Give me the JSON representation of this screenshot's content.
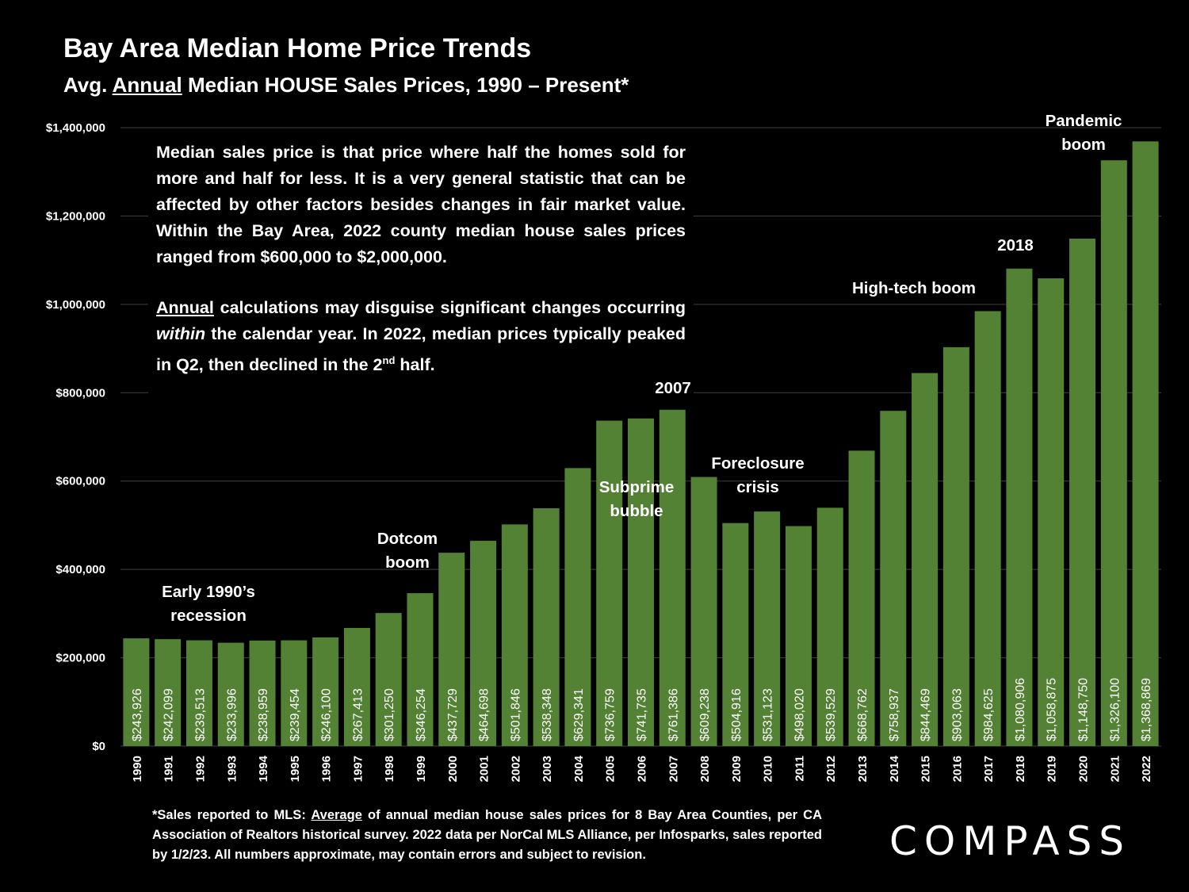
{
  "chart_data": {
    "type": "bar",
    "title": "Bay Area Median Home Price Trends",
    "subtitle_parts": [
      "Avg. ",
      "Annual",
      " Median HOUSE Sales Prices, 1990 – Present*"
    ],
    "categories": [
      "1990",
      "1991",
      "1992",
      "1993",
      "1994",
      "1995",
      "1996",
      "1997",
      "1998",
      "1999",
      "2000",
      "2001",
      "2002",
      "2003",
      "2004",
      "2005",
      "2006",
      "2007",
      "2008",
      "2009",
      "2010",
      "2011",
      "2012",
      "2013",
      "2014",
      "2015",
      "2016",
      "2017",
      "2018",
      "2019",
      "2020",
      "2021",
      "2022"
    ],
    "values": [
      243926,
      242099,
      239513,
      233996,
      238959,
      239454,
      246100,
      267413,
      301250,
      346254,
      437729,
      464698,
      501846,
      538348,
      629341,
      736759,
      741735,
      761386,
      609238,
      504916,
      531123,
      498020,
      539529,
      668762,
      758937,
      844469,
      903063,
      984625,
      1080906,
      1058875,
      1148750,
      1326100,
      1368869
    ],
    "value_labels": [
      "$243,926",
      "$242,099",
      "$239,513",
      "$233,996",
      "$238,959",
      "$239,454",
      "$246,100",
      "$267,413",
      "$301,250",
      "$346,254",
      "$437,729",
      "$464,698",
      "$501,846",
      "$538,348",
      "$629,341",
      "$736,759",
      "$741,735",
      "$761,386",
      "$609,238",
      "$504,916",
      "$531,123",
      "$498,020",
      "$539,529",
      "$668,762",
      "$758,937",
      "$844,469",
      "$903,063",
      "$984,625",
      "$1,080,906",
      "$1,058,875",
      "$1,148,750",
      "$1,326,100",
      "$1,368,869"
    ],
    "color": "#548235",
    "ylim": [
      0,
      1400000
    ],
    "yticks": [
      {
        "value": 0,
        "label": "$0"
      },
      {
        "value": 200000,
        "label": "$200,000"
      },
      {
        "value": 400000,
        "label": "$400,000"
      },
      {
        "value": 600000,
        "label": "$600,000"
      },
      {
        "value": 800000,
        "label": "$800,000"
      },
      {
        "value": 1000000,
        "label": "$1,000,000"
      },
      {
        "value": 1200000,
        "label": "$1,200,000"
      },
      {
        "value": 1400000,
        "label": "$1,400,000"
      }
    ],
    "grid": true,
    "annotations": [
      "Early 1990’s\nrecession",
      "Dotcom\nboom",
      "Subprime\nbubble",
      "2007",
      "Foreclosure\ncrisis",
      "High-tech boom",
      "2018",
      "Pandemic\nboom"
    ],
    "note_1": "Median sales price is that price where half the homes sold for more and half for less. It is a very general statistic that can be affected by other factors besides changes in fair market value. Within the Bay Area, 2022 county median house sales prices ranged from $600,000 to $2,000,000.",
    "note_2_parts": [
      "Annual",
      " calculations may disguise significant changes occurring ",
      "within",
      " the calendar year. In 2022, median prices typically peaked in Q2, then declined in the 2",
      "nd",
      " half."
    ],
    "footnote_parts": [
      "*Sales reported to MLS: ",
      "Average",
      " of annual median house sales prices for 8 Bay Area Counties, per CA Association of Realtors historical survey. 2022 data per NorCal MLS Alliance, per Infosparks, sales reported by 1/2/23. All numbers approximate, may contain errors and subject to revision."
    ],
    "logo": "COMPASS"
  }
}
